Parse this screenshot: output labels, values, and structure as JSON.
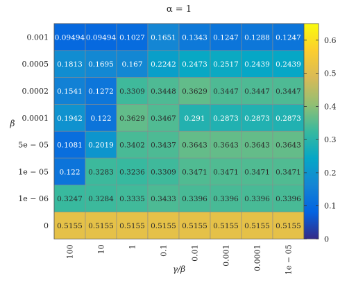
{
  "chart_data": {
    "type": "heatmap",
    "title": "α = 1",
    "xlabel": "γ/β",
    "ylabel": "β",
    "x_categories": [
      "100",
      "10",
      "1",
      "0.1",
      "0.01",
      "0.001",
      "0.0001",
      "1e − 05"
    ],
    "y_categories": [
      "0.001",
      "0.0005",
      "0.0002",
      "0.0001",
      "5e − 05",
      "1e − 05",
      "1e − 06",
      "0"
    ],
    "values": [
      [
        0.09494,
        0.09494,
        0.1027,
        0.1651,
        0.1343,
        0.1247,
        0.1288,
        0.1247
      ],
      [
        0.1813,
        0.1695,
        0.167,
        0.2242,
        0.2473,
        0.2517,
        0.2439,
        0.2439
      ],
      [
        0.1541,
        0.1272,
        0.3309,
        0.3448,
        0.3629,
        0.3447,
        0.3447,
        0.3447
      ],
      [
        0.1942,
        0.122,
        0.3629,
        0.3467,
        0.291,
        0.2873,
        0.2873,
        0.2873
      ],
      [
        0.1081,
        0.2019,
        0.3402,
        0.3437,
        0.3643,
        0.3643,
        0.3643,
        0.3643
      ],
      [
        0.122,
        0.3283,
        0.3236,
        0.3309,
        0.3471,
        0.3471,
        0.3471,
        0.3471
      ],
      [
        0.3247,
        0.3284,
        0.3335,
        0.3433,
        0.3396,
        0.3396,
        0.3396,
        0.3396
      ],
      [
        0.5155,
        0.5155,
        0.5155,
        0.5155,
        0.5155,
        0.5155,
        0.5155,
        0.5155
      ]
    ],
    "value_labels": [
      [
        "0.09494",
        "0.09494",
        "0.1027",
        "0.1651",
        "0.1343",
        "0.1247",
        "0.1288",
        "0.1247"
      ],
      [
        "0.1813",
        "0.1695",
        "0.167",
        "0.2242",
        "0.2473",
        "0.2517",
        "0.2439",
        "0.2439"
      ],
      [
        "0.1541",
        "0.1272",
        "0.3309",
        "0.3448",
        "0.3629",
        "0.3447",
        "0.3447",
        "0.3447"
      ],
      [
        "0.1942",
        "0.122",
        "0.3629",
        "0.3467",
        "0.291",
        "0.2873",
        "0.2873",
        "0.2873"
      ],
      [
        "0.1081",
        "0.2019",
        "0.3402",
        "0.3437",
        "0.3643",
        "0.3643",
        "0.3643",
        "0.3643"
      ],
      [
        "0.122",
        "0.3283",
        "0.3236",
        "0.3309",
        "0.3471",
        "0.3471",
        "0.3471",
        "0.3471"
      ],
      [
        "0.3247",
        "0.3284",
        "0.3335",
        "0.3433",
        "0.3396",
        "0.3396",
        "0.3396",
        "0.3396"
      ],
      [
        "0.5155",
        "0.5155",
        "0.5155",
        "0.5155",
        "0.5155",
        "0.5155",
        "0.5155",
        "0.5155"
      ]
    ],
    "colorbar": {
      "range": [
        0,
        0.65
      ],
      "ticks": [
        0,
        0.1,
        0.2,
        0.3,
        0.4,
        0.5,
        0.6
      ],
      "tick_labels": [
        "0",
        "0.1",
        "0.2",
        "0.3",
        "0.4",
        "0.5",
        "0.6"
      ],
      "colormap": "parula",
      "placement": "right"
    },
    "colormap_stops": [
      "#352a87",
      "#0363e1",
      "#1485d4",
      "#06a7c6",
      "#38b99e",
      "#92bf73",
      "#d9ba56",
      "#fcce2e",
      "#f9fb0e"
    ],
    "grid": true
  }
}
